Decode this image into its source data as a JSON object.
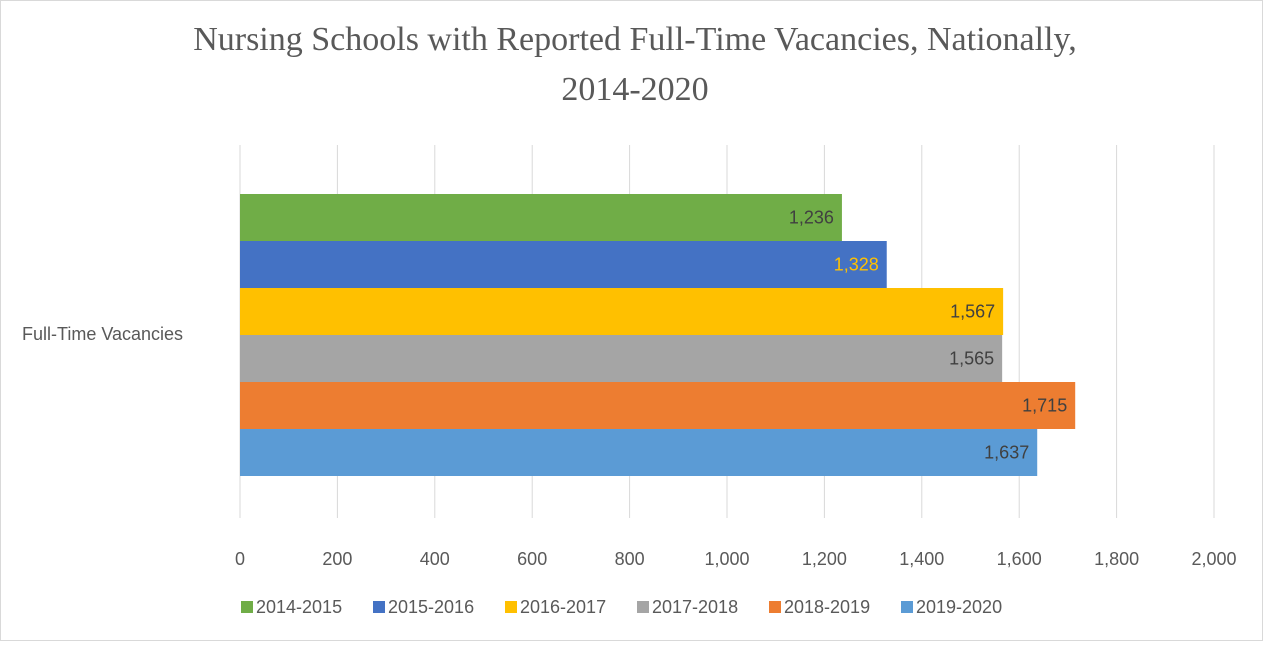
{
  "chart_data": {
    "type": "bar",
    "orientation": "horizontal",
    "title": "Nursing Schools with Reported Full-Time Vacancies, Nationally, 2014-2020",
    "categories": [
      "Full-Time Vacancies"
    ],
    "series": [
      {
        "name": "2014-2015",
        "color": "#70ad47",
        "label_color": "#404040",
        "values": [
          1236
        ],
        "value_labels": [
          "1,236"
        ]
      },
      {
        "name": "2015-2016",
        "color": "#4472c4",
        "label_color": "#ffc000",
        "values": [
          1328
        ],
        "value_labels": [
          "1,328"
        ]
      },
      {
        "name": "2016-2017",
        "color": "#ffc000",
        "label_color": "#404040",
        "values": [
          1567
        ],
        "value_labels": [
          "1,567"
        ]
      },
      {
        "name": "2017-2018",
        "color": "#a5a5a5",
        "label_color": "#404040",
        "values": [
          1565
        ],
        "value_labels": [
          "1,565"
        ]
      },
      {
        "name": "2018-2019",
        "color": "#ed7d31",
        "label_color": "#404040",
        "values": [
          1715
        ],
        "value_labels": [
          "1,715"
        ]
      },
      {
        "name": "2019-2020",
        "color": "#5b9bd5",
        "label_color": "#404040",
        "values": [
          1637
        ],
        "value_labels": [
          "1,637"
        ]
      }
    ],
    "xlim": [
      0,
      2000
    ],
    "xticks": [
      0,
      200,
      400,
      600,
      800,
      {
        "value": 1000,
        "label": "1,000"
      },
      {
        "value": 1200,
        "label": "1,200"
      },
      {
        "value": 1400,
        "label": "1,400"
      },
      {
        "value": 1600,
        "label": "1,600"
      },
      {
        "value": 1800,
        "label": "1,800"
      },
      {
        "value": 2000,
        "label": "2,000"
      }
    ],
    "grid": true,
    "legend": "bottom"
  }
}
